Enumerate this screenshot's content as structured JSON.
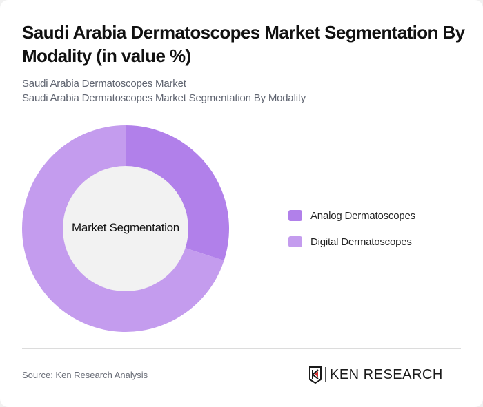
{
  "header": {
    "title": "Saudi Arabia Dermatoscopes Market Segmentation By Modality (in value %)",
    "subtitle_line1": "Saudi Arabia Dermatoscopes Market",
    "subtitle_line2": "Saudi Arabia Dermatoscopes Market Segmentation By Modality"
  },
  "chart": {
    "center_label": "Market Segmentation"
  },
  "legend": {
    "items": [
      {
        "label": "Analog Dermatoscopes",
        "color": "#b180ea"
      },
      {
        "label": "Digital Dermatoscopes",
        "color": "#c49cee"
      }
    ]
  },
  "footer": {
    "source": "Source: Ken Research Analysis",
    "logo_text": "KEN RESEARCH"
  },
  "chart_data": {
    "type": "pie",
    "subtype": "donut",
    "title": "Saudi Arabia Dermatoscopes Market Segmentation By Modality (in value %)",
    "center_label": "Market Segmentation",
    "categories": [
      "Analog Dermatoscopes",
      "Digital Dermatoscopes"
    ],
    "values": [
      30,
      70
    ],
    "colors": [
      "#b180ea",
      "#c49cee"
    ],
    "legend_position": "right",
    "unit": "%"
  }
}
